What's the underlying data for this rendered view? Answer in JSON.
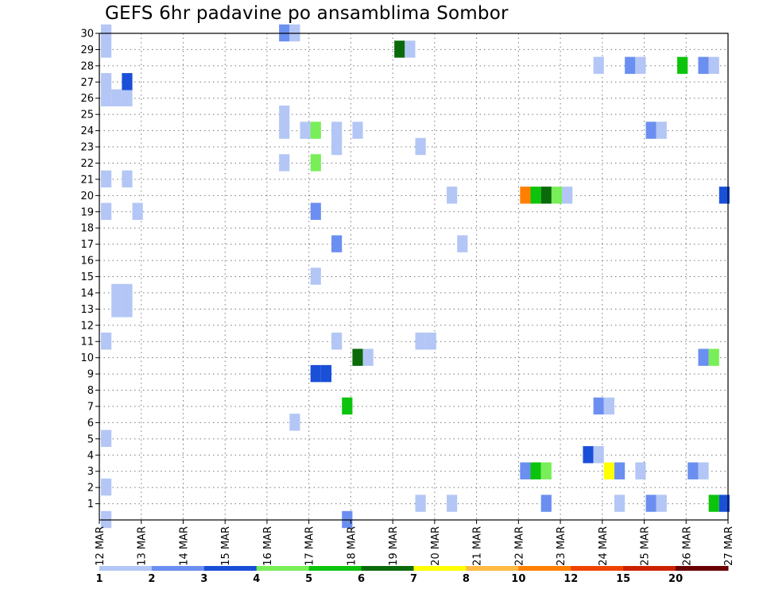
{
  "chart_data": {
    "type": "heatmap",
    "title": "GEFS 6hr padavine po ansamblima Sombor",
    "xlabel": "",
    "ylabel": "",
    "x_ticks": [
      "12 MAR",
      "13 MAR",
      "14 MAR",
      "15 MAR",
      "16 MAR",
      "17 MAR",
      "18 MAR",
      "19 MAR",
      "20 MAR",
      "21 MAR",
      "22 MAR",
      "23 MAR",
      "24 MAR",
      "25 MAR",
      "26 MAR",
      "27 MAR"
    ],
    "xlim": [
      0,
      15
    ],
    "y_ticks": [
      1,
      2,
      3,
      4,
      5,
      6,
      7,
      8,
      9,
      10,
      11,
      12,
      13,
      14,
      15,
      16,
      17,
      18,
      19,
      20,
      21,
      22,
      23,
      24,
      25,
      26,
      27,
      28,
      29,
      30
    ],
    "ylim": [
      0,
      30
    ],
    "grid": true,
    "legend": {
      "placement": "bottom",
      "bins": [
        {
          "label": "1",
          "color": "#b3c6f5"
        },
        {
          "label": "2",
          "color": "#6b8ff0"
        },
        {
          "label": "3",
          "color": "#1a4fd8"
        },
        {
          "label": "4",
          "color": "#78ee58"
        },
        {
          "label": "5",
          "color": "#0cc40c"
        },
        {
          "label": "6",
          "color": "#0a6a0a"
        },
        {
          "label": "7",
          "color": "#ffff00"
        },
        {
          "label": "8",
          "color": "#ffbb44"
        },
        {
          "label": "10",
          "color": "#ff8000"
        },
        {
          "label": "12",
          "color": "#ee4400"
        },
        {
          "label": "15",
          "color": "#cc2200"
        },
        {
          "label": "20",
          "color": "#6b0000"
        }
      ],
      "end_labels": [
        "1",
        "20"
      ]
    },
    "points": [
      {
        "day": 0.0,
        "member": 0,
        "level": 1
      },
      {
        "day": 0.0,
        "member": 2,
        "level": 1
      },
      {
        "day": 0.0,
        "member": 5,
        "level": 1
      },
      {
        "day": 0.0,
        "member": 11,
        "level": 1
      },
      {
        "day": 0.25,
        "member": 13,
        "level": 1
      },
      {
        "day": 0.5,
        "member": 13,
        "level": 1
      },
      {
        "day": 0.25,
        "member": 14,
        "level": 1
      },
      {
        "day": 0.5,
        "member": 14,
        "level": 1
      },
      {
        "day": 0.0,
        "member": 19,
        "level": 1
      },
      {
        "day": 0.75,
        "member": 19,
        "level": 1
      },
      {
        "day": 0.0,
        "member": 21,
        "level": 1
      },
      {
        "day": 0.5,
        "member": 21,
        "level": 1
      },
      {
        "day": 0.0,
        "member": 26,
        "level": 1
      },
      {
        "day": 0.25,
        "member": 26,
        "level": 1
      },
      {
        "day": 0.5,
        "member": 26,
        "level": 1
      },
      {
        "day": 0.0,
        "member": 27,
        "level": 1
      },
      {
        "day": 0.5,
        "member": 27,
        "level": 3
      },
      {
        "day": 0.0,
        "member": 29,
        "level": 1
      },
      {
        "day": 0.0,
        "member": 30,
        "level": 1
      },
      {
        "day": 4.25,
        "member": 30,
        "level": 2
      },
      {
        "day": 4.5,
        "member": 30,
        "level": 1
      },
      {
        "day": 4.25,
        "member": 25,
        "level": 1
      },
      {
        "day": 4.25,
        "member": 24,
        "level": 1
      },
      {
        "day": 4.25,
        "member": 22,
        "level": 1
      },
      {
        "day": 4.75,
        "member": 24,
        "level": 1
      },
      {
        "day": 5.0,
        "member": 24,
        "level": 4
      },
      {
        "day": 5.0,
        "member": 22,
        "level": 4
      },
      {
        "day": 5.0,
        "member": 19,
        "level": 2
      },
      {
        "day": 5.0,
        "member": 15,
        "level": 1
      },
      {
        "day": 4.5,
        "member": 6,
        "level": 1
      },
      {
        "day": 5.0,
        "member": 9,
        "level": 3
      },
      {
        "day": 5.25,
        "member": 9,
        "level": 3
      },
      {
        "day": 5.5,
        "member": 23,
        "level": 1
      },
      {
        "day": 5.5,
        "member": 24,
        "level": 1
      },
      {
        "day": 5.5,
        "member": 17,
        "level": 2
      },
      {
        "day": 5.5,
        "member": 11,
        "level": 1
      },
      {
        "day": 5.75,
        "member": 7,
        "level": 5
      },
      {
        "day": 5.75,
        "member": 0,
        "level": 2
      },
      {
        "day": 6.0,
        "member": 24,
        "level": 1
      },
      {
        "day": 6.0,
        "member": 10,
        "level": 6
      },
      {
        "day": 6.25,
        "member": 10,
        "level": 1
      },
      {
        "day": 7.0,
        "member": 29,
        "level": 6
      },
      {
        "day": 7.25,
        "member": 29,
        "level": 1
      },
      {
        "day": 7.5,
        "member": 23,
        "level": 1
      },
      {
        "day": 7.5,
        "member": 11,
        "level": 1
      },
      {
        "day": 7.75,
        "member": 11,
        "level": 1
      },
      {
        "day": 7.5,
        "member": 1,
        "level": 1
      },
      {
        "day": 8.25,
        "member": 20,
        "level": 1
      },
      {
        "day": 8.5,
        "member": 17,
        "level": 1
      },
      {
        "day": 8.25,
        "member": 1,
        "level": 1
      },
      {
        "day": 10.0,
        "member": 20,
        "level": 9
      },
      {
        "day": 10.25,
        "member": 20,
        "level": 5
      },
      {
        "day": 10.5,
        "member": 20,
        "level": 6
      },
      {
        "day": 10.75,
        "member": 20,
        "level": 4
      },
      {
        "day": 11.0,
        "member": 20,
        "level": 1
      },
      {
        "day": 10.0,
        "member": 3,
        "level": 2
      },
      {
        "day": 10.25,
        "member": 3,
        "level": 5
      },
      {
        "day": 10.5,
        "member": 3,
        "level": 4
      },
      {
        "day": 10.5,
        "member": 1,
        "level": 2
      },
      {
        "day": 11.5,
        "member": 4,
        "level": 3
      },
      {
        "day": 11.75,
        "member": 4,
        "level": 1
      },
      {
        "day": 12.0,
        "member": 3,
        "level": 7
      },
      {
        "day": 12.25,
        "member": 3,
        "level": 2
      },
      {
        "day": 12.75,
        "member": 3,
        "level": 1
      },
      {
        "day": 11.75,
        "member": 7,
        "level": 2
      },
      {
        "day": 12.0,
        "member": 7,
        "level": 1
      },
      {
        "day": 11.75,
        "member": 28,
        "level": 1
      },
      {
        "day": 12.25,
        "member": 1,
        "level": 1
      },
      {
        "day": 12.5,
        "member": 28,
        "level": 2
      },
      {
        "day": 12.75,
        "member": 28,
        "level": 1
      },
      {
        "day": 13.0,
        "member": 24,
        "level": 2
      },
      {
        "day": 13.25,
        "member": 24,
        "level": 1
      },
      {
        "day": 13.0,
        "member": 1,
        "level": 2
      },
      {
        "day": 13.25,
        "member": 1,
        "level": 1
      },
      {
        "day": 13.75,
        "member": 28,
        "level": 5
      },
      {
        "day": 14.0,
        "member": 3,
        "level": 2
      },
      {
        "day": 14.25,
        "member": 3,
        "level": 1
      },
      {
        "day": 14.25,
        "member": 28,
        "level": 2
      },
      {
        "day": 14.5,
        "member": 28,
        "level": 1
      },
      {
        "day": 14.25,
        "member": 10,
        "level": 2
      },
      {
        "day": 14.5,
        "member": 10,
        "level": 4
      },
      {
        "day": 14.5,
        "member": 1,
        "level": 5
      },
      {
        "day": 14.75,
        "member": 1,
        "level": 3
      },
      {
        "day": 14.75,
        "member": 20,
        "level": 3
      }
    ]
  }
}
